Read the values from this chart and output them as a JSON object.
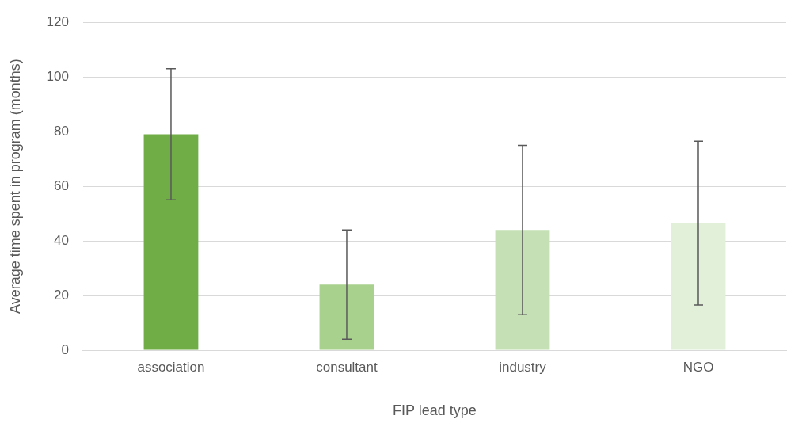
{
  "chart_data": {
    "type": "bar",
    "xlabel": "FIP lead type",
    "ylabel": "Average time spent in program (months)",
    "categories": [
      "association",
      "consultant",
      "industry",
      "NGO"
    ],
    "values": [
      79,
      24,
      44,
      46.5
    ],
    "colors": [
      "#70ad47",
      "#a9d18e",
      "#c5e0b4",
      "#e2f0d9"
    ],
    "errors": [
      24,
      20,
      31,
      30
    ],
    "ylim": [
      0,
      120
    ],
    "yticks": [
      0,
      20,
      40,
      60,
      80,
      100,
      120
    ],
    "grid": "y",
    "legend": false
  }
}
